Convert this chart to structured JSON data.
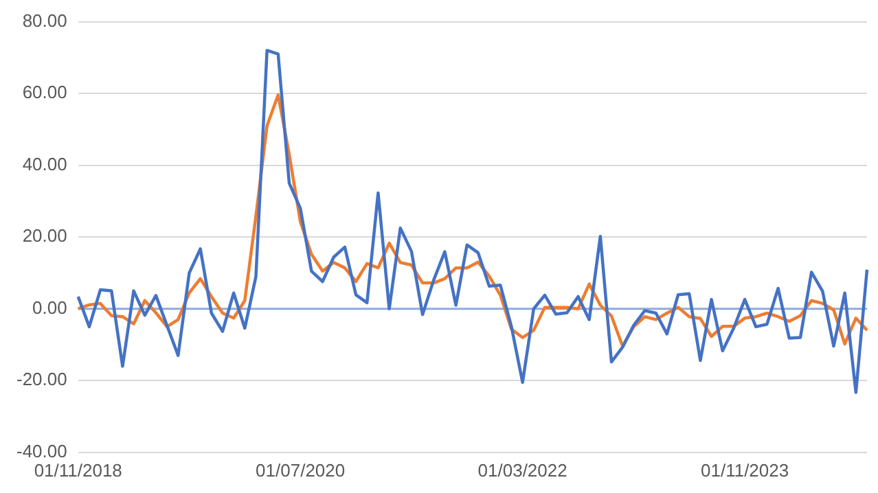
{
  "chart_data": {
    "type": "line",
    "categories": [
      "01/11/2018",
      null,
      null,
      null,
      null,
      null,
      null,
      null,
      null,
      null,
      null,
      null,
      null,
      null,
      null,
      null,
      null,
      null,
      null,
      null,
      "01/07/2020",
      null,
      null,
      null,
      null,
      null,
      null,
      null,
      null,
      null,
      null,
      null,
      null,
      null,
      null,
      null,
      null,
      null,
      null,
      null,
      "01/03/2022",
      null,
      null,
      null,
      null,
      null,
      null,
      null,
      null,
      null,
      null,
      null,
      null,
      null,
      null,
      null,
      null,
      null,
      null,
      null,
      "01/11/2023",
      null,
      null,
      null,
      null,
      null,
      null,
      null,
      null,
      null,
      null,
      null
    ],
    "series": [
      {
        "color": "#4472c4",
        "values": [
          3.4,
          -5,
          5.3,
          5,
          -16,
          5,
          -1.8,
          3.7,
          -4.7,
          -13,
          10,
          16.7,
          -1.2,
          -6.3,
          4.4,
          -5.4,
          9,
          72,
          71,
          35,
          28,
          10.5,
          7.6,
          14.4,
          17.2,
          3.9,
          1.7,
          32.3,
          0,
          22.5,
          16,
          -1.6,
          8,
          15.9,
          1,
          17.8,
          15.6,
          6.3,
          6.6,
          -5,
          -20.5,
          0,
          3.8,
          -1.5,
          -1.1,
          3.4,
          -3,
          20.2,
          -14.8,
          -10.7,
          -4.6,
          -0.5,
          -1.2,
          -7,
          3.9,
          4.2,
          -14.4,
          2.6,
          -11.7,
          -5.4,
          2.6,
          -5,
          -4.3,
          5.7,
          -8.2,
          -8,
          10.2,
          4.9,
          -10.4,
          4.4,
          -23.3,
          10.9
        ]
      },
      {
        "color": "#ed7d31",
        "values": [
          0,
          1.1,
          1.5,
          -1.9,
          -2.2,
          -4.2,
          2.3,
          -1.1,
          -5,
          -3,
          4.4,
          8.4,
          3.4,
          -1.2,
          -2.6,
          2.3,
          25.8,
          51,
          59.6,
          43,
          24.3,
          15.2,
          10.5,
          12.9,
          11.4,
          7.6,
          12.6,
          11.4,
          18.3,
          12.9,
          12.2,
          7.2,
          7.2,
          8.4,
          11.4,
          11.4,
          13,
          9.1,
          3.8,
          -5.7,
          -8,
          -6,
          0.4,
          0.4,
          0.4,
          0,
          6.9,
          1,
          -2,
          -10.4,
          -5,
          -2.2,
          -3,
          -1.2,
          0.4,
          -2.2,
          -2.7,
          -7.7,
          -4.9,
          -4.9,
          -2.6,
          -2.2,
          -1.2,
          -2.2,
          -3.5,
          -1.9,
          2.3,
          1.5,
          -0.3,
          -9.8,
          -2.6,
          -6
        ]
      }
    ],
    "ylim": [
      -40,
      80
    ],
    "yticks": [
      {
        "value": -40,
        "label": "-40.00"
      },
      {
        "value": -20,
        "label": "-20.00"
      },
      {
        "value": 0,
        "label": "0.00"
      },
      {
        "value": 20,
        "label": "20.00"
      },
      {
        "value": 40,
        "label": "40.00"
      },
      {
        "value": 60,
        "label": "60.00"
      },
      {
        "value": 80,
        "label": "80.00"
      }
    ],
    "ref_lines": [
      {
        "axis": "y",
        "value": 0,
        "color": "#8faadc"
      }
    ],
    "grid": "y",
    "legend": false,
    "marker": "none",
    "line_style": "solid"
  }
}
